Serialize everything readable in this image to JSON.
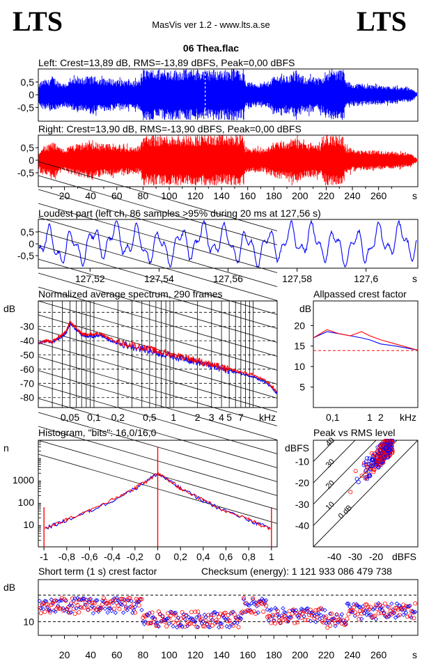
{
  "header": {
    "logo_left": "LTS",
    "logo_right": "LTS",
    "app_title": "MasVis ver 1.2 - www.lts.a.se",
    "file_name": "06 Thea.flac"
  },
  "colors": {
    "left": "#0000ff",
    "right": "#ff0000",
    "grid": "#000000"
  },
  "chart_data": [
    {
      "id": "left_waveform",
      "type": "area",
      "title": "Left: Crest=13,89 dB, RMS=-13,89 dBFS, Peak=0,00 dBFS",
      "ylim": [
        -1,
        1
      ],
      "y_ticks": [
        "0,5",
        "0",
        "-0,5"
      ],
      "x_unit": "s",
      "xlim": [
        0,
        290
      ],
      "envelope_time_s": [
        0,
        2,
        5,
        8,
        10,
        12,
        15,
        18,
        20,
        25,
        30,
        35,
        40,
        45,
        50,
        55,
        60,
        65,
        70,
        75,
        78,
        80,
        85,
        90,
        95,
        100,
        105,
        110,
        115,
        120,
        125,
        128,
        130,
        135,
        140,
        145,
        150,
        155,
        157,
        158,
        160,
        165,
        170,
        175,
        180,
        185,
        190,
        195,
        200,
        205,
        210,
        215,
        220,
        223,
        225,
        230,
        233,
        235,
        238,
        240,
        245,
        250,
        255,
        260,
        265,
        270,
        275,
        280,
        285,
        290
      ],
      "envelope_amp": [
        0.3,
        0.55,
        0.6,
        0.6,
        0.75,
        0.7,
        0.55,
        0.5,
        0.45,
        0.6,
        0.65,
        0.7,
        0.75,
        0.7,
        0.65,
        0.65,
        0.6,
        0.6,
        0.55,
        0.55,
        0.6,
        1.0,
        1.0,
        1.0,
        1.0,
        1.0,
        1.0,
        1.0,
        1.0,
        1.0,
        1.0,
        1.0,
        1.0,
        1.0,
        1.0,
        1.0,
        1.0,
        1.0,
        1.0,
        0.55,
        0.5,
        0.5,
        0.45,
        0.5,
        0.75,
        0.8,
        0.75,
        0.9,
        0.8,
        0.7,
        0.7,
        0.6,
        1.0,
        1.0,
        1.0,
        1.0,
        1.0,
        0.55,
        0.5,
        0.45,
        0.45,
        0.4,
        0.4,
        0.4,
        0.35,
        0.35,
        0.3,
        0.3,
        0.25,
        0.05
      ]
    },
    {
      "id": "right_waveform",
      "type": "area",
      "title": "Right: Crest=13,90 dB, RMS=-13,90 dBFS, Peak=0,00 dBFS",
      "ylim": [
        -1,
        1
      ],
      "y_ticks": [
        "0,5",
        "0",
        "-0,5"
      ],
      "x_ticks": [
        "20",
        "40",
        "60",
        "80",
        "100",
        "120",
        "140",
        "160",
        "180",
        "200",
        "220",
        "240",
        "260"
      ],
      "x_tick_values": [
        20,
        40,
        60,
        80,
        100,
        120,
        140,
        160,
        180,
        200,
        220,
        240,
        260
      ],
      "x_unit": "s",
      "xlim": [
        0,
        290
      ]
    },
    {
      "id": "loudest_part",
      "type": "line",
      "title": "Loudest part (left  ch, 86 samples >95% during 20 ms at 127,56 s)",
      "xlim": [
        127.505,
        127.615
      ],
      "ylim": [
        -1,
        1
      ],
      "y_ticks": [
        "0,5",
        "0",
        "-0,5"
      ],
      "x_ticks": [
        "127,52",
        "127,54",
        "127,56",
        "127,58",
        "127,6"
      ],
      "x_tick_values": [
        127.52,
        127.54,
        127.56,
        127.58,
        127.6
      ],
      "x_unit": "s"
    },
    {
      "id": "spectrum",
      "type": "line",
      "title": "Normalized average spectrum, 290 frames",
      "ylabel": "dB",
      "y_ticks": [
        "-30",
        "-40",
        "-50",
        "-60",
        "-70",
        "-80"
      ],
      "y_tick_values": [
        -30,
        -40,
        -50,
        -60,
        -70,
        -80
      ],
      "ylim": [
        -87,
        -12
      ],
      "x_scale": "log",
      "xlim": [
        0.02,
        20
      ],
      "x_ticks": [
        "0,05",
        "0,1",
        "0,2",
        "0,5",
        "1",
        "2",
        "3",
        "4",
        "5",
        "7",
        "kHz"
      ],
      "x_tick_values": [
        0.05,
        0.1,
        0.2,
        0.5,
        1,
        2,
        3,
        4,
        5,
        7
      ],
      "series": [
        {
          "color": "blue",
          "x": [
            0.02,
            0.025,
            0.03,
            0.035,
            0.04,
            0.045,
            0.05,
            0.06,
            0.07,
            0.08,
            0.1,
            0.12,
            0.15,
            0.2,
            0.3,
            0.5,
            0.7,
            1,
            1.5,
            2,
            3,
            4,
            5,
            7,
            10,
            15,
            20
          ],
          "y": [
            -42,
            -40,
            -41,
            -39,
            -37,
            -34,
            -28,
            -32,
            -36,
            -37,
            -37,
            -36,
            -39,
            -42,
            -44,
            -47,
            -49,
            -51,
            -53,
            -55,
            -58,
            -60,
            -61,
            -63,
            -65,
            -70,
            -77
          ]
        },
        {
          "color": "red",
          "x": [
            0.02,
            0.025,
            0.03,
            0.035,
            0.04,
            0.045,
            0.05,
            0.06,
            0.07,
            0.08,
            0.1,
            0.12,
            0.15,
            0.2,
            0.3,
            0.5,
            0.7,
            1,
            1.5,
            2,
            3,
            4,
            5,
            7,
            10,
            15,
            20
          ],
          "y": [
            -42,
            -40,
            -41,
            -38,
            -36,
            -33,
            -27,
            -31,
            -35,
            -36,
            -35,
            -35,
            -38,
            -41,
            -43,
            -46,
            -48,
            -50,
            -52,
            -54,
            -57,
            -59,
            -60,
            -62,
            -64,
            -69,
            -76
          ]
        }
      ]
    },
    {
      "id": "allpassed_crest",
      "type": "line",
      "title": "Allpassed crest factor",
      "ylabel": "dB",
      "y_ticks": [
        "20",
        "15",
        "10",
        "5"
      ],
      "y_tick_values": [
        20,
        15,
        10,
        5
      ],
      "ylim": [
        0,
        26
      ],
      "x_scale": "log",
      "xlim": [
        0.03,
        20
      ],
      "x_ticks": [
        "0,1",
        "1",
        "2",
        "kHz"
      ],
      "x_tick_values": [
        0.1,
        1,
        2
      ],
      "reference_line_db": 13.9,
      "series": [
        {
          "color": "blue",
          "x": [
            0.03,
            0.07,
            0.15,
            0.3,
            0.6,
            1,
            2,
            5,
            20
          ],
          "y": [
            17,
            18.5,
            18,
            17.5,
            17,
            16.5,
            15.5,
            15,
            14
          ]
        },
        {
          "color": "red",
          "x": [
            0.03,
            0.07,
            0.15,
            0.3,
            0.6,
            1,
            2,
            5,
            20
          ],
          "y": [
            17,
            19,
            18,
            17.5,
            18.5,
            17.5,
            16.5,
            15.5,
            14
          ]
        }
      ]
    },
    {
      "id": "histogram",
      "type": "line",
      "title": "Histogram, \"bits\": 16,0/16,0",
      "ylabel": "n",
      "y_scale": "log",
      "ylim": [
        1,
        60000
      ],
      "y_ticks": [
        "1000",
        "100",
        "10"
      ],
      "y_tick_values": [
        1000,
        100,
        10
      ],
      "xlim": [
        -1.05,
        1.05
      ],
      "x_ticks": [
        "-1",
        "-0,8",
        "-0,6",
        "-0,4",
        "-0,2",
        "0",
        "0,2",
        "0,4",
        "0,6",
        "0,8",
        "1"
      ],
      "x_tick_values": [
        -1,
        -0.8,
        -0.6,
        -0.4,
        -0.2,
        0,
        0.2,
        0.4,
        0.6,
        0.8,
        1
      ],
      "series": [
        {
          "color": "blue",
          "x": [
            -0.99,
            -0.9,
            -0.8,
            -0.6,
            -0.4,
            -0.2,
            -0.1,
            0,
            0.1,
            0.2,
            0.4,
            0.6,
            0.8,
            0.9,
            0.99
          ],
          "y": [
            7,
            10,
            16,
            40,
            120,
            420,
            900,
            2000,
            900,
            420,
            120,
            40,
            16,
            10,
            7
          ]
        },
        {
          "color": "red",
          "x": [
            -0.99,
            -0.9,
            -0.8,
            -0.6,
            -0.4,
            -0.2,
            -0.1,
            0,
            0.1,
            0.2,
            0.4,
            0.6,
            0.8,
            0.9,
            0.99
          ],
          "y": [
            7,
            10,
            17,
            42,
            125,
            430,
            920,
            2050,
            920,
            430,
            125,
            42,
            17,
            10,
            7
          ]
        }
      ]
    },
    {
      "id": "peak_vs_rms",
      "type": "scatter",
      "title": "Peak vs RMS level",
      "ylabel": "dBFS",
      "xlabel": "dBFS",
      "xlim": [
        -50,
        0
      ],
      "ylim": [
        -50,
        0
      ],
      "x_ticks": [
        "-40",
        "-30",
        "-20"
      ],
      "x_tick_values": [
        -40,
        -30,
        -20
      ],
      "y_ticks": [
        "-10",
        "-20",
        "-30",
        "-40"
      ],
      "y_tick_values": [
        -10,
        -20,
        -30,
        -40
      ],
      "crest_lines_db": [
        "40",
        "30",
        "20",
        "10",
        "0 dB"
      ],
      "crest_line_values": [
        40,
        30,
        20,
        10,
        0
      ]
    },
    {
      "id": "short_term_crest",
      "type": "scatter",
      "title": "Short term (1 s) crest factor",
      "checksum": "Checksum (energy):  1 121 933 086 479 738",
      "ylabel": "dB",
      "y_scale": "log",
      "ylim": [
        7,
        30
      ],
      "y_ticks": [
        "10"
      ],
      "y_tick_values": [
        10
      ],
      "reference_lines_db": [
        10,
        20
      ],
      "xlim": [
        0,
        290
      ],
      "x_ticks": [
        "20",
        "40",
        "60",
        "80",
        "100",
        "120",
        "140",
        "160",
        "180",
        "200",
        "220",
        "240",
        "260"
      ],
      "x_tick_values": [
        20,
        40,
        60,
        80,
        100,
        120,
        140,
        160,
        180,
        200,
        220,
        240,
        260
      ],
      "x_unit": "s"
    }
  ]
}
